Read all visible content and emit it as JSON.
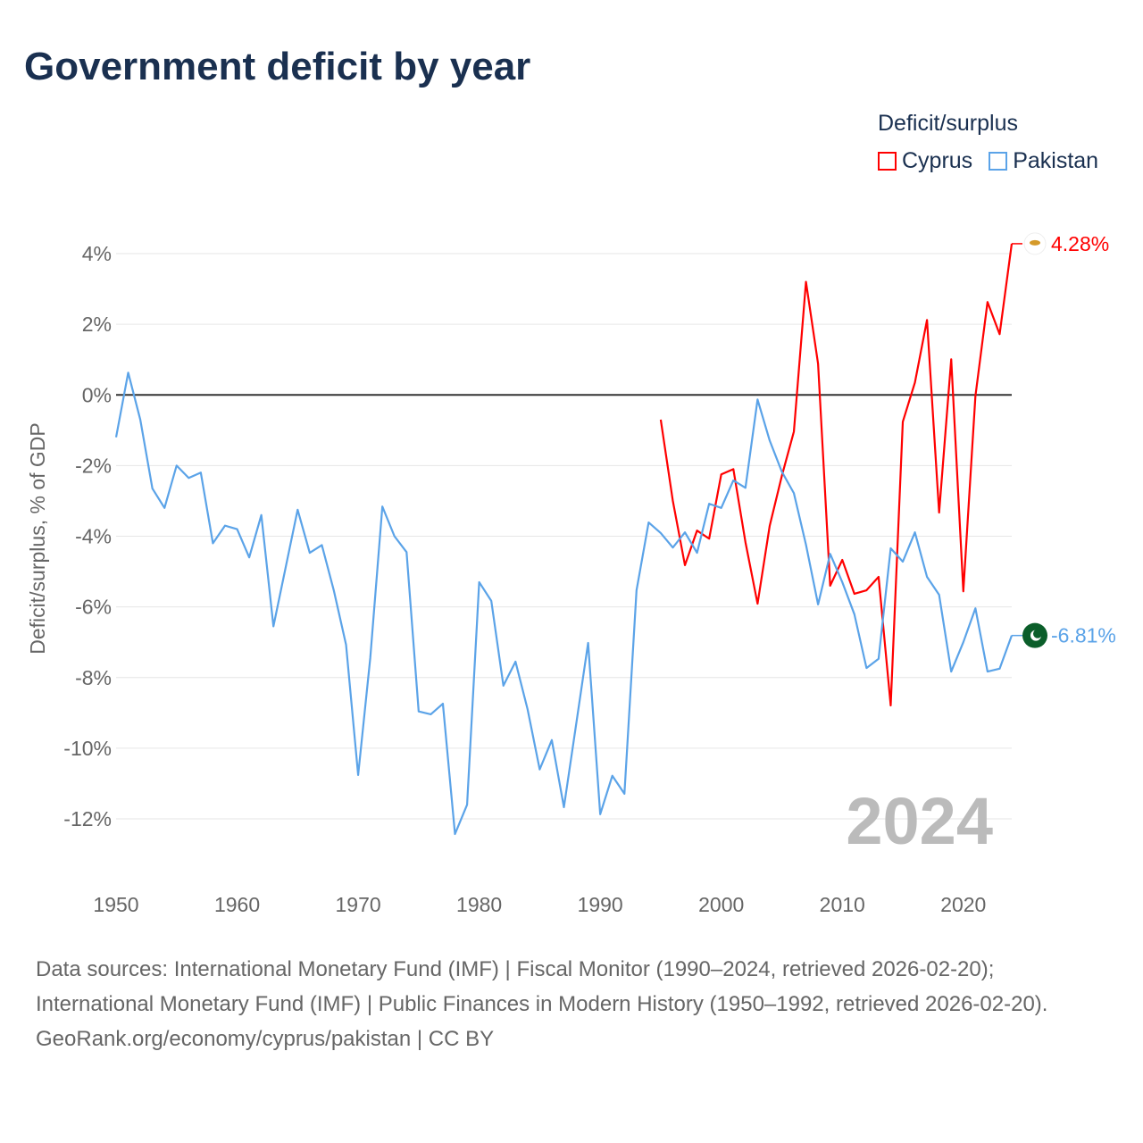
{
  "title": "Government deficit by year",
  "legend": {
    "title": "Deficit/surplus",
    "items": [
      {
        "name": "Cyprus",
        "color": "#ff0000"
      },
      {
        "name": "Pakistan",
        "color": "#5ba3e8"
      }
    ]
  },
  "chart_data": {
    "type": "line",
    "title": "Government deficit by year",
    "xlabel": "",
    "ylabel": "Deficit/surplus, % of GDP",
    "xlim": [
      1950,
      2024
    ],
    "ylim": [
      -12,
      4
    ],
    "x_ticks": [
      1950,
      1960,
      1970,
      1980,
      1990,
      2000,
      2010,
      2020
    ],
    "x_tick_labels": [
      "1950",
      "1960",
      "1970",
      "1980",
      "1990",
      "2000",
      "2010",
      "2020"
    ],
    "y_ticks": [
      4,
      2,
      0,
      -2,
      -4,
      -6,
      -8,
      -10,
      -12
    ],
    "y_tick_labels": [
      "4%",
      "2%",
      "0%",
      "-2%",
      "-4%",
      "-6%",
      "-8%",
      "-10%",
      "-12%"
    ],
    "grid": true,
    "legend_position": "top-right",
    "year_label": "2024",
    "series": [
      {
        "name": "Cyprus",
        "color": "#ff0000",
        "start_year": 1995,
        "end_label": "4.28%",
        "values": [
          -0.7,
          -3.0,
          -4.82,
          -3.84,
          -4.07,
          -2.25,
          -2.1,
          -4.17,
          -5.91,
          -3.71,
          -2.3,
          -1.04,
          3.2,
          0.88,
          -5.4,
          -4.67,
          -5.63,
          -5.53,
          -5.15,
          -8.79,
          -0.76,
          0.35,
          2.12,
          -3.33,
          1.01,
          -5.56,
          -0.03,
          2.63,
          1.72,
          4.28
        ]
      },
      {
        "name": "Pakistan",
        "color": "#5ba3e8",
        "start_year": 1950,
        "end_label": "-6.81%",
        "values": [
          -1.2,
          0.63,
          -0.7,
          -2.65,
          -3.2,
          -2.0,
          -2.35,
          -2.2,
          -4.2,
          -3.7,
          -3.8,
          -4.6,
          -3.4,
          -6.55,
          -4.9,
          -3.25,
          -4.47,
          -4.25,
          -5.55,
          -7.07,
          -10.76,
          -7.45,
          -3.16,
          -4.0,
          -4.45,
          -8.96,
          -9.04,
          -8.74,
          -12.43,
          -11.6,
          -5.3,
          -5.83,
          -8.23,
          -7.55,
          -8.9,
          -10.6,
          -9.77,
          -11.67,
          -9.35,
          -7.02,
          -11.87,
          -10.78,
          -11.29,
          -5.53,
          -3.61,
          -3.91,
          -4.32,
          -3.89,
          -4.47,
          -3.08,
          -3.2,
          -2.42,
          -2.63,
          -0.13,
          -1.29,
          -2.17,
          -2.78,
          -4.24,
          -5.93,
          -4.5,
          -5.3,
          -6.21,
          -7.73,
          -7.47,
          -4.34,
          -4.72,
          -3.89,
          -5.15,
          -5.66,
          -7.83,
          -7.0,
          -6.04,
          -7.83,
          -7.75,
          -6.81
        ]
      }
    ]
  },
  "footer": {
    "sources": "Data sources: International Monetary Fund (IMF) | Fiscal Monitor (1990–2024, retrieved 2026-02-20); International Monetary Fund (IMF) | Public Finances in Modern History (1950–1992, retrieved 2026-02-20).",
    "credit": "GeoRank.org/economy/cyprus/pakistan | CC BY"
  }
}
